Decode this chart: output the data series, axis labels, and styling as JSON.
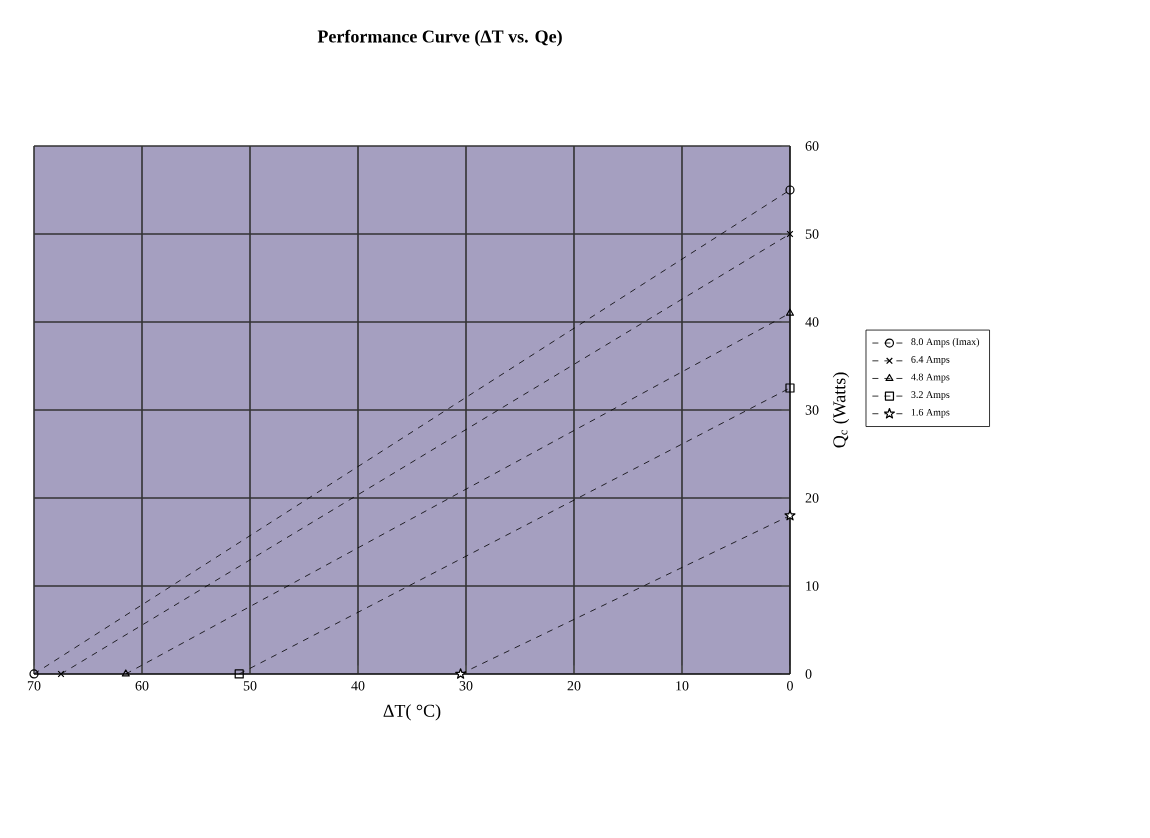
{
  "chart_data": {
    "type": "line",
    "title": "Performance Curve (ΔT vs. Qe)",
    "xlabel": "ΔT( °C)",
    "ylabel": "Q$_{c}$ (Watts)",
    "xlim": [
      70,
      0
    ],
    "xticks": [
      70,
      60,
      50,
      40,
      30,
      20,
      10,
      0
    ],
    "ylim": [
      0,
      60
    ],
    "yticks": [
      0,
      10,
      20,
      30,
      40,
      50,
      60
    ],
    "grid": true,
    "legend": "right",
    "line_style": "dashed",
    "series": [
      {
        "name": "8.0 Amps (Imax)",
        "color": "#000000",
        "marker": "circle",
        "x": [
          70,
          0
        ],
        "values": [
          0,
          55
        ]
      },
      {
        "name": "6.4 Amps",
        "color": "#000000",
        "marker": "cross",
        "x": [
          67.5,
          0
        ],
        "values": [
          0,
          50
        ]
      },
      {
        "name": "4.8 Amps",
        "color": "#000000",
        "marker": "triangle",
        "x": [
          61.5,
          0
        ],
        "values": [
          0,
          41
        ]
      },
      {
        "name": "3.2 Amps",
        "color": "#000000",
        "marker": "square",
        "x": [
          51,
          0
        ],
        "values": [
          0,
          32.5
        ]
      },
      {
        "name": "1.6 Amps",
        "color": "#000000",
        "marker": "star",
        "x": [
          30.5,
          0
        ],
        "values": [
          0,
          18
        ]
      }
    ]
  }
}
